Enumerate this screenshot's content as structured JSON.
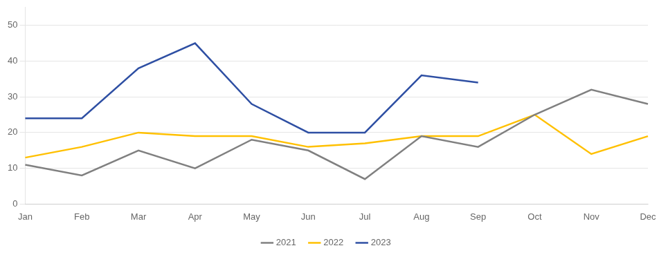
{
  "chart_data": {
    "type": "line",
    "categories": [
      "Jan",
      "Feb",
      "Mar",
      "Apr",
      "May",
      "Jun",
      "Jul",
      "Aug",
      "Sep",
      "Oct",
      "Nov",
      "Dec"
    ],
    "series": [
      {
        "name": "2021",
        "color": "#808080",
        "values": [
          11,
          8,
          15,
          10,
          18,
          15,
          7,
          19,
          16,
          25,
          32,
          28
        ]
      },
      {
        "name": "2022",
        "color": "#FFC000",
        "values": [
          13,
          16,
          20,
          19,
          19,
          16,
          17,
          19,
          19,
          25,
          14,
          19
        ]
      },
      {
        "name": "2023",
        "color": "#2E4FA3",
        "values": [
          24,
          24,
          38,
          45,
          28,
          20,
          20,
          36,
          34,
          null,
          null,
          null
        ]
      }
    ],
    "ylim": [
      0,
      55
    ],
    "yticks": [
      0,
      10,
      20,
      30,
      40,
      50
    ],
    "grid": true,
    "legend": "bottom"
  }
}
